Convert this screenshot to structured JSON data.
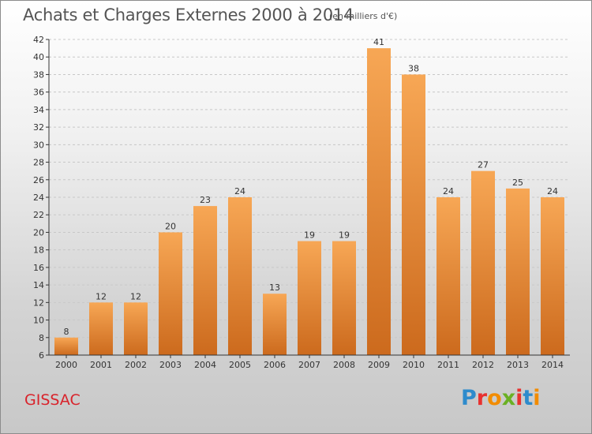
{
  "header": {
    "title": "Achats et Charges Externes 2000 à 2014",
    "subtitle": "(en milliers d'€)"
  },
  "commune": "GISSAC",
  "logo": {
    "text": "Proxiti",
    "letter_colors": [
      "#2e8bcc",
      "#e8312f",
      "#f28c00",
      "#6ab023",
      "#e8312f",
      "#2e8bcc",
      "#f28c00"
    ]
  },
  "colors": {
    "bar_light": "#f7a755",
    "bar_dark": "#cc6a1d",
    "grid": "#c8c8c8",
    "axis": "#333333",
    "text": "#333333"
  },
  "chart_data": {
    "type": "bar",
    "title": "Achats et Charges Externes 2000 à 2014",
    "subtitle": "(en milliers d'€)",
    "categories": [
      "2000",
      "2001",
      "2002",
      "2003",
      "2004",
      "2005",
      "2006",
      "2007",
      "2008",
      "2009",
      "2010",
      "2011",
      "2012",
      "2013",
      "2014"
    ],
    "values": [
      8,
      12,
      12,
      20,
      23,
      24,
      13,
      19,
      19,
      41,
      38,
      24,
      27,
      25,
      24
    ],
    "ylim": [
      6,
      42
    ],
    "yticks": [
      6,
      8,
      10,
      12,
      14,
      16,
      18,
      20,
      22,
      24,
      26,
      28,
      30,
      32,
      34,
      36,
      38,
      40,
      42
    ],
    "grid": true,
    "xlabel": "",
    "ylabel": ""
  }
}
